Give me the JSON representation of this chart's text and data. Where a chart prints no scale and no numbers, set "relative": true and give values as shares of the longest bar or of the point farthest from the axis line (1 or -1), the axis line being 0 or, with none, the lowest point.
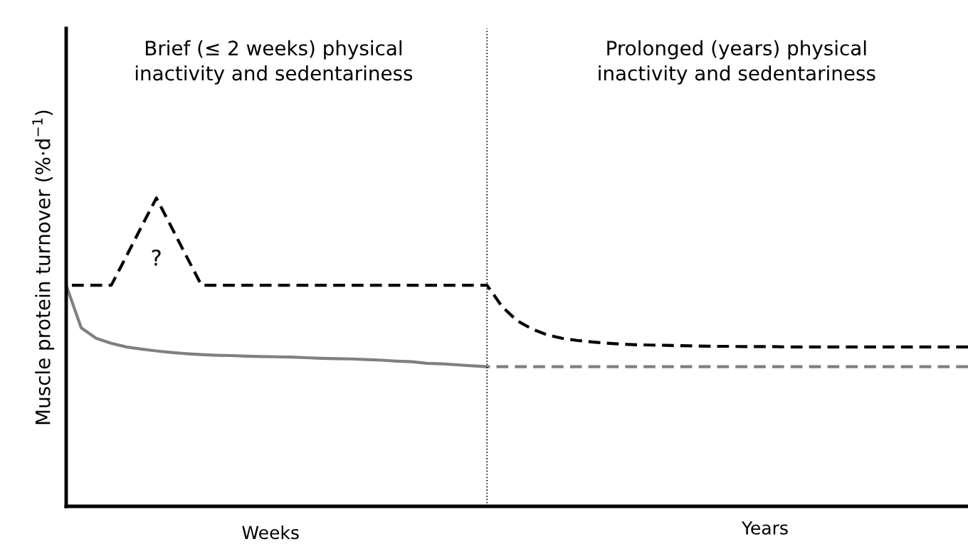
{
  "chart_data": {
    "type": "line",
    "relative": true,
    "ylabel": "Muscle protein turnover (%·d$^{−1}$)",
    "categories": [
      null,
      null,
      null,
      null,
      null,
      null,
      null,
      null,
      null,
      null,
      null,
      null,
      null,
      null,
      null,
      null,
      null,
      null,
      null,
      null,
      null,
      null,
      null,
      null,
      null,
      null,
      null,
      null,
      null,
      null,
      null,
      null,
      null,
      null,
      null,
      null,
      null,
      null,
      null,
      null,
      null,
      null,
      null,
      null,
      null,
      null,
      null,
      null,
      null,
      null,
      null,
      null,
      null,
      null,
      null,
      null,
      null,
      null,
      null,
      null,
      null
    ],
    "series": [
      {
        "color": "#000000",
        "line_style": "dashed",
        "values": [
          0.717,
          0.717,
          0.717,
          0.717,
          0.811,
          0.906,
          1.0,
          0.906,
          0.811,
          0.717,
          0.717,
          0.717,
          0.717,
          0.717,
          0.717,
          0.717,
          0.717,
          0.717,
          0.717,
          0.717,
          0.717,
          0.717,
          0.717,
          0.717,
          0.717,
          0.717,
          0.717,
          0.717,
          0.717,
          0.648,
          0.602,
          0.575,
          0.556,
          0.545,
          0.538,
          0.533,
          0.529,
          0.526,
          0.524,
          0.523,
          0.522,
          0.521,
          0.52,
          0.519,
          0.519,
          0.518,
          0.518,
          0.518,
          0.517,
          0.517,
          0.517,
          0.517,
          0.517,
          0.517,
          0.517,
          0.517,
          0.517,
          0.517,
          0.517,
          0.517,
          0.517
        ]
      },
      {
        "color": "#808080",
        "line_style": "solid",
        "values": [
          0.717,
          0.579,
          0.545,
          0.529,
          0.517,
          0.51,
          0.504,
          0.499,
          0.495,
          0.492,
          0.49,
          0.489,
          0.487,
          0.486,
          0.485,
          0.484,
          0.482,
          0.48,
          0.479,
          0.478,
          0.476,
          0.474,
          0.471,
          0.469,
          0.464,
          0.462,
          0.459,
          0.456,
          0.453,
          null,
          null,
          null,
          null,
          null,
          null,
          null,
          null,
          null,
          null,
          null,
          null,
          null,
          null,
          null,
          null,
          null,
          null,
          null,
          null,
          null,
          null,
          null,
          null,
          null,
          null,
          null,
          null,
          null,
          null,
          null,
          null
        ]
      },
      {
        "color": "#808080",
        "line_style": "dashed",
        "values": [
          null,
          null,
          null,
          null,
          null,
          null,
          null,
          null,
          null,
          null,
          null,
          null,
          null,
          null,
          null,
          null,
          null,
          null,
          null,
          null,
          null,
          null,
          null,
          null,
          null,
          null,
          null,
          null,
          0.453,
          0.453,
          0.453,
          0.453,
          0.453,
          0.453,
          0.453,
          0.453,
          0.453,
          0.453,
          0.453,
          0.453,
          0.453,
          0.453,
          0.453,
          0.453,
          0.453,
          0.453,
          0.453,
          0.453,
          0.453,
          0.453,
          0.453,
          0.453,
          0.453,
          0.453,
          0.453,
          0.453,
          0.453,
          0.453,
          0.453,
          0.453,
          0.453
        ]
      }
    ],
    "annotations": [
      "Brief (≤ 2 weeks) physical\ninactivity and sedentariness",
      "Prolonged (years) physical\ninactivity and sedentariness",
      "?",
      "Weeks",
      "Years"
    ],
    "grid": false,
    "legend": false
  }
}
